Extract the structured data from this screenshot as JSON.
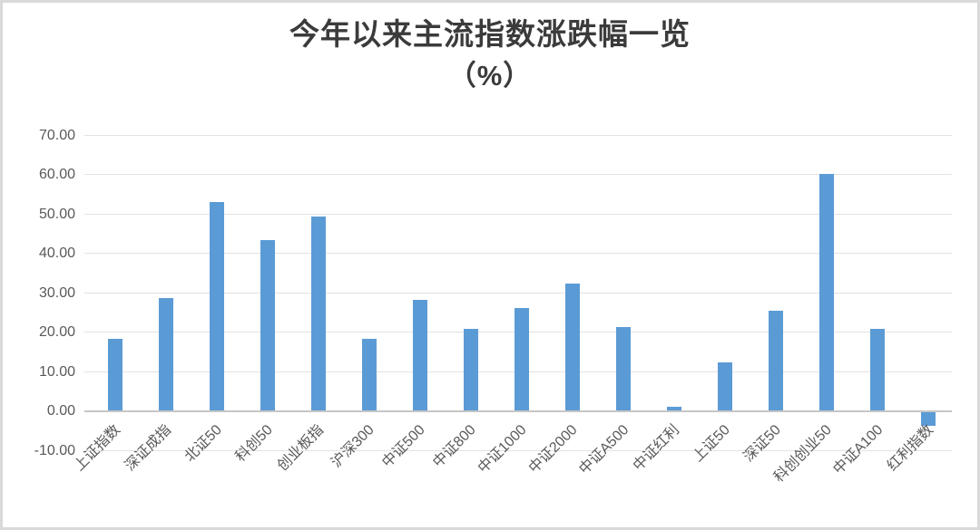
{
  "chart_data": {
    "type": "bar",
    "title_line1": "今年以来主流指数涨跌幅一览",
    "title_line2": "（%）",
    "title": "今年以来主流指数涨跌幅一览（%）",
    "categories": [
      "上证指数",
      "深证成指",
      "北证50",
      "科创50",
      "创业板指",
      "沪深300",
      "中证500",
      "中证800",
      "中证1000",
      "中证2000",
      "中证A500",
      "中证红利",
      "上证50",
      "深证50",
      "科创创业50",
      "中证A100",
      "红利指数"
    ],
    "values": [
      18.1,
      28.5,
      52.9,
      43.3,
      49.1,
      18.1,
      28.0,
      20.6,
      26.0,
      32.2,
      21.1,
      0.9,
      12.2,
      25.4,
      60.0,
      20.7,
      -3.4
    ],
    "ylim": [
      -10,
      70
    ],
    "ytick_values": [
      70,
      60,
      50,
      40,
      30,
      20,
      10,
      0,
      -10
    ],
    "ytick_labels": [
      "70.00",
      "60.00",
      "50.00",
      "40.00",
      "30.00",
      "20.00",
      "10.00",
      "0.00",
      "-10.00"
    ],
    "xlabel": "",
    "ylabel": "",
    "grid": true,
    "legend": "none",
    "bar_color": "#5B9BD5",
    "gridline_color": "#e2e2e2",
    "axis_line_color": "#c6c6c6",
    "tick_label_color": "#595959",
    "title_color": "#3b3b3b"
  }
}
